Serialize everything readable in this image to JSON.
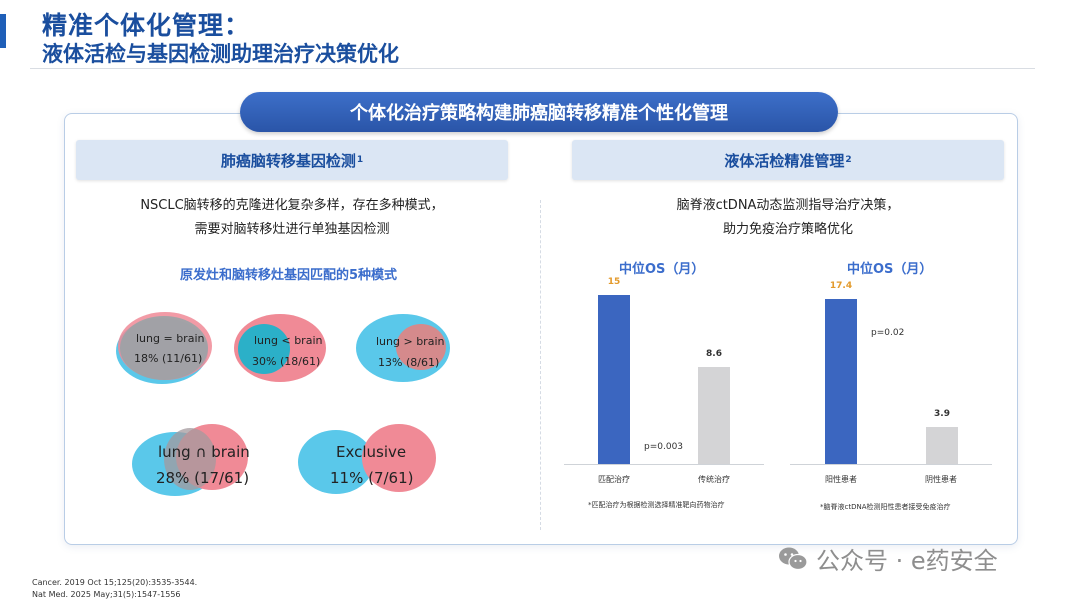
{
  "header": {
    "title_line1": "精准个体化管理：",
    "title_line2": "液体活检与基因检测助理治疗决策优化"
  },
  "banner": "个体化治疗策略构建肺癌脑转移精准个性化管理",
  "left": {
    "heading": "肺癌脑转移基因检测",
    "heading_ref": "1",
    "text_line1": "NSCLC脑转移的克隆进化复杂多样，存在多种模式，",
    "text_line2": "需要对脑转移灶进行单独基因检测",
    "subhead": "原发灶和脑转移灶基因匹配的5种模式",
    "venns": [
      {
        "label": "lung = brain",
        "value": "18% (11/61)"
      },
      {
        "label": "lung < brain",
        "value": "30% (18/61)"
      },
      {
        "label": "lung > brain",
        "value": "13% (8/61)"
      },
      {
        "label": "lung ∩ brain",
        "value": "28% (17/61)"
      },
      {
        "label": "Exclusive",
        "value": "11% (7/61)"
      }
    ]
  },
  "right": {
    "heading": "液体活检精准管理",
    "heading_ref": "2",
    "text_line1": "脑脊液ctDNA动态监测指导治疗决策，",
    "text_line2": "助力免疫治疗策略优化"
  },
  "chart_data": [
    {
      "type": "bar",
      "title": "中位OS（月）",
      "categories": [
        "匹配治疗",
        "传统治疗"
      ],
      "values": [
        15,
        8.6
      ],
      "value_labels": [
        "15",
        "8.6"
      ],
      "ylim": [
        0,
        16
      ],
      "colors": [
        "#3b66c0",
        "#d4d4d6"
      ],
      "annotation": "p=0.003",
      "footnote": "*匹配治疗为根据检测选择精准靶向药物治疗"
    },
    {
      "type": "bar",
      "title": "中位OS（月）",
      "categories": [
        "阳性患者",
        "阴性患者"
      ],
      "values": [
        17.4,
        3.9
      ],
      "value_labels": [
        "17.4",
        "3.9"
      ],
      "ylim": [
        0,
        19
      ],
      "colors": [
        "#3b66c0",
        "#d4d4d6"
      ],
      "annotation": "p=0.02",
      "footnote": "*脑脊液ctDNA检测阳性患者接受免疫治疗"
    }
  ],
  "references": {
    "ref1": "Cancer. 2019 Oct 15;125(20):3535-3544.",
    "ref2": "Nat Med. 2025 May;31(5):1547-1556"
  },
  "watermark": "公众号 · e药安全"
}
